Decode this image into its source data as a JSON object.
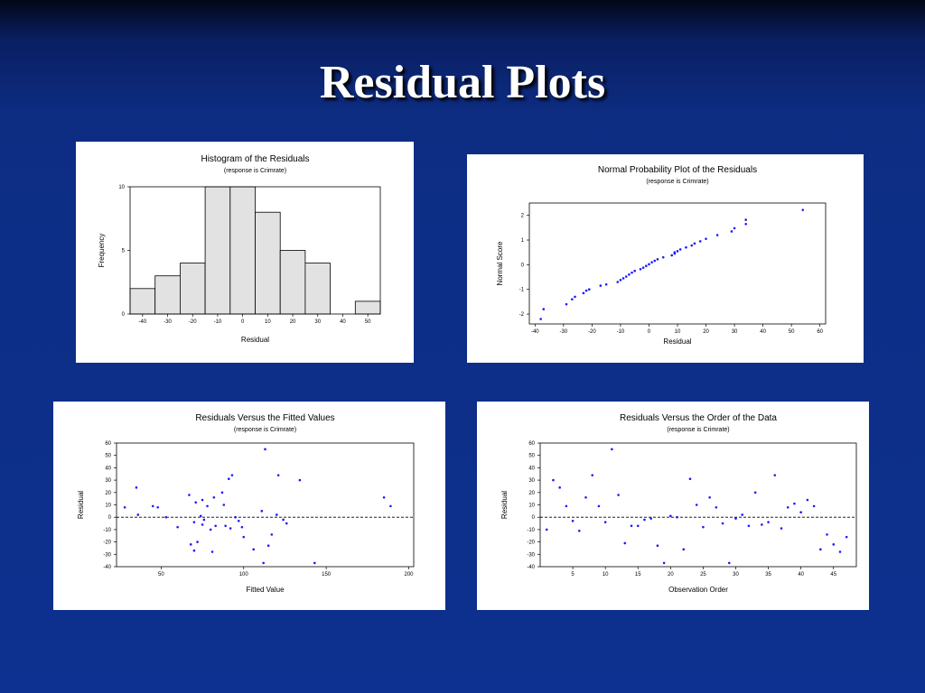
{
  "slide": {
    "title": "Residual Plots"
  },
  "chart_data": [
    {
      "type": "bar",
      "title": "Histogram of the Residuals",
      "subtitle": "(response is Crimrate)",
      "xlabel": "Residual",
      "ylabel": "Frequency",
      "xlim": [
        -45,
        55
      ],
      "ylim": [
        0,
        10
      ],
      "xticks": [
        -40,
        -30,
        -20,
        -10,
        0,
        10,
        20,
        30,
        40,
        50
      ],
      "yticks": [
        0,
        5,
        10
      ],
      "bin_width": 10,
      "bin_centers": [
        -40,
        -30,
        -20,
        -10,
        0,
        10,
        20,
        30,
        40,
        50
      ],
      "values": [
        2,
        3,
        4,
        10,
        10,
        8,
        5,
        4,
        0,
        1
      ],
      "bar_color": "#e2e2e2"
    },
    {
      "type": "scatter",
      "title": "Normal Probability Plot of the Residuals",
      "subtitle": "(response is Crimrate)",
      "xlabel": "Residual",
      "ylabel": "Normal Score",
      "xlim": [
        -42,
        62
      ],
      "ylim": [
        -2.4,
        2.5
      ],
      "xticks": [
        -40,
        -30,
        -20,
        -10,
        0,
        10,
        20,
        30,
        40,
        50,
        60
      ],
      "yticks": [
        -2,
        -1,
        0,
        1,
        2
      ],
      "point_color": "#1a1aff",
      "points": [
        [
          -38,
          -2.2
        ],
        [
          -37,
          -1.8
        ],
        [
          -29,
          -1.6
        ],
        [
          -27,
          -1.4
        ],
        [
          -26,
          -1.3
        ],
        [
          -23,
          -1.15
        ],
        [
          -22,
          -1.05
        ],
        [
          -21,
          -1.0
        ],
        [
          -17,
          -0.85
        ],
        [
          -15,
          -0.8
        ],
        [
          -11,
          -0.7
        ],
        [
          -10,
          -0.62
        ],
        [
          -9,
          -0.55
        ],
        [
          -8,
          -0.48
        ],
        [
          -7,
          -0.4
        ],
        [
          -6,
          -0.32
        ],
        [
          -5,
          -0.25
        ],
        [
          -3,
          -0.18
        ],
        [
          -2,
          -0.12
        ],
        [
          -1,
          -0.05
        ],
        [
          0,
          0.02
        ],
        [
          1,
          0.1
        ],
        [
          2,
          0.16
        ],
        [
          3,
          0.22
        ],
        [
          5,
          0.3
        ],
        [
          8,
          0.38
        ],
        [
          9,
          0.45
        ],
        [
          9,
          0.5
        ],
        [
          10,
          0.55
        ],
        [
          11,
          0.62
        ],
        [
          13,
          0.7
        ],
        [
          15,
          0.78
        ],
        [
          16,
          0.86
        ],
        [
          18,
          0.95
        ],
        [
          20,
          1.05
        ],
        [
          24,
          1.2
        ],
        [
          29,
          1.35
        ],
        [
          30,
          1.48
        ],
        [
          34,
          1.65
        ],
        [
          34,
          1.82
        ],
        [
          54,
          2.22
        ]
      ]
    },
    {
      "type": "scatter",
      "title": "Residuals Versus the Fitted Values",
      "subtitle": "(response is Crimrate)",
      "xlabel": "Fitted Value",
      "ylabel": "Residual",
      "xlim": [
        23,
        203
      ],
      "ylim": [
        -40,
        60
      ],
      "xticks": [
        50,
        100,
        150,
        200
      ],
      "yticks": [
        -40,
        -30,
        -20,
        -10,
        0,
        10,
        20,
        30,
        40,
        50,
        60
      ],
      "reference_line": 0,
      "point_color": "#1a1aff",
      "points": [
        [
          28,
          8
        ],
        [
          35,
          24
        ],
        [
          36,
          2
        ],
        [
          45,
          9
        ],
        [
          48,
          8
        ],
        [
          53,
          0
        ],
        [
          60,
          -8
        ],
        [
          67,
          18
        ],
        [
          68,
          -22
        ],
        [
          70,
          -4
        ],
        [
          70,
          -27
        ],
        [
          71,
          12
        ],
        [
          72,
          -20
        ],
        [
          74,
          1
        ],
        [
          75,
          -6
        ],
        [
          75,
          14
        ],
        [
          76,
          -2
        ],
        [
          78,
          9
        ],
        [
          80,
          -10
        ],
        [
          81,
          -28
        ],
        [
          82,
          16
        ],
        [
          83,
          -7
        ],
        [
          87,
          20
        ],
        [
          88,
          10
        ],
        [
          89,
          -7
        ],
        [
          91,
          31
        ],
        [
          92,
          -9
        ],
        [
          93,
          34
        ],
        [
          95,
          0
        ],
        [
          97,
          -3
        ],
        [
          99,
          -8
        ],
        [
          100,
          -16
        ],
        [
          106,
          -26
        ],
        [
          111,
          5
        ],
        [
          112,
          -37
        ],
        [
          113,
          55
        ],
        [
          115,
          -23
        ],
        [
          117,
          -14
        ],
        [
          120,
          2
        ],
        [
          121,
          34
        ],
        [
          124,
          -2
        ],
        [
          126,
          -5
        ],
        [
          134,
          30
        ],
        [
          143,
          -37
        ],
        [
          185,
          16
        ],
        [
          189,
          9
        ]
      ]
    },
    {
      "type": "scatter",
      "title": "Residuals Versus the Order of the Data",
      "subtitle": "(response is Crimrate)",
      "xlabel": "Observation Order",
      "ylabel": "Residual",
      "xlim": [
        0,
        48.5
      ],
      "ylim": [
        -40,
        60
      ],
      "xticks": [
        5,
        10,
        15,
        20,
        25,
        30,
        35,
        40,
        45
      ],
      "yticks": [
        -40,
        -30,
        -20,
        -10,
        0,
        10,
        20,
        30,
        40,
        50,
        60
      ],
      "reference_line": 0,
      "point_color": "#1a1aff",
      "points": [
        [
          1,
          -10
        ],
        [
          2,
          30
        ],
        [
          3,
          24
        ],
        [
          4,
          9
        ],
        [
          5,
          -3
        ],
        [
          6,
          -11
        ],
        [
          7,
          16
        ],
        [
          8,
          34
        ],
        [
          9,
          9
        ],
        [
          10,
          -4
        ],
        [
          11,
          55
        ],
        [
          12,
          18
        ],
        [
          13,
          -21
        ],
        [
          14,
          -7
        ],
        [
          15,
          -7
        ],
        [
          16,
          -2
        ],
        [
          17,
          -1
        ],
        [
          18,
          -23
        ],
        [
          19,
          -37
        ],
        [
          20,
          1
        ],
        [
          21,
          0
        ],
        [
          22,
          -26
        ],
        [
          23,
          31
        ],
        [
          24,
          10
        ],
        [
          25,
          -8
        ],
        [
          26,
          16
        ],
        [
          27,
          8
        ],
        [
          28,
          -5
        ],
        [
          29,
          -37
        ],
        [
          30,
          -1
        ],
        [
          31,
          2
        ],
        [
          32,
          -7
        ],
        [
          33,
          20
        ],
        [
          34,
          -6
        ],
        [
          35,
          -4
        ],
        [
          36,
          34
        ],
        [
          37,
          -9
        ],
        [
          38,
          8
        ],
        [
          39,
          11
        ],
        [
          40,
          4
        ],
        [
          41,
          14
        ],
        [
          42,
          9
        ],
        [
          43,
          -26
        ],
        [
          44,
          -14
        ],
        [
          45,
          -22
        ],
        [
          46,
          -28
        ],
        [
          47,
          -16
        ]
      ]
    }
  ]
}
